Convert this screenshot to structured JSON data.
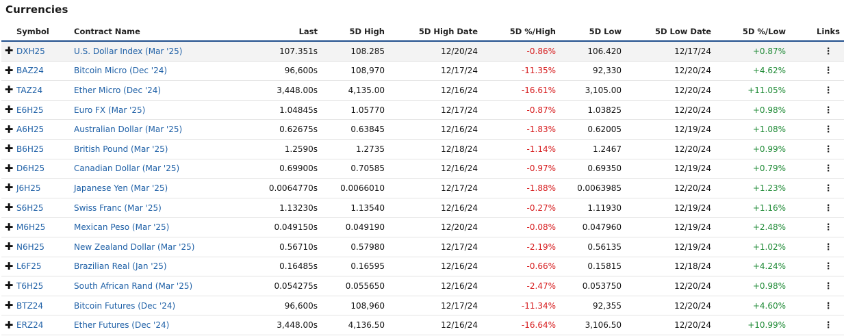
{
  "title": "Currencies",
  "columns": {
    "symbol": "Symbol",
    "name": "Contract Name",
    "last": "Last",
    "high": "5D High",
    "high_date": "5D High Date",
    "high_pct": "5D %/High",
    "low": "5D Low",
    "low_date": "5D Low Date",
    "low_pct": "5D %/Low",
    "links": "Links"
  },
  "icons": {
    "expand": "plus-icon",
    "more": "vertical-ellipsis-icon"
  },
  "colors": {
    "link": "#1d5fa6",
    "negative": "#d6191b",
    "positive": "#1e8a35",
    "header_rule": "#1f4e8c"
  },
  "rows": [
    {
      "symbol": "DXH25",
      "name": "U.S. Dollar Index (Mar '25)",
      "last": "107.351s",
      "high": "108.285",
      "high_date": "12/20/24",
      "high_pct": "-0.86%",
      "low": "106.420",
      "low_date": "12/17/24",
      "low_pct": "+0.87%"
    },
    {
      "symbol": "BAZ24",
      "name": "Bitcoin Micro (Dec '24)",
      "last": "96,600s",
      "high": "108,970",
      "high_date": "12/17/24",
      "high_pct": "-11.35%",
      "low": "92,330",
      "low_date": "12/20/24",
      "low_pct": "+4.62%"
    },
    {
      "symbol": "TAZ24",
      "name": "Ether Micro (Dec '24)",
      "last": "3,448.00s",
      "high": "4,135.00",
      "high_date": "12/16/24",
      "high_pct": "-16.61%",
      "low": "3,105.00",
      "low_date": "12/20/24",
      "low_pct": "+11.05%"
    },
    {
      "symbol": "E6H25",
      "name": "Euro FX (Mar '25)",
      "last": "1.04845s",
      "high": "1.05770",
      "high_date": "12/17/24",
      "high_pct": "-0.87%",
      "low": "1.03825",
      "low_date": "12/20/24",
      "low_pct": "+0.98%"
    },
    {
      "symbol": "A6H25",
      "name": "Australian Dollar (Mar '25)",
      "last": "0.62675s",
      "high": "0.63845",
      "high_date": "12/16/24",
      "high_pct": "-1.83%",
      "low": "0.62005",
      "low_date": "12/19/24",
      "low_pct": "+1.08%"
    },
    {
      "symbol": "B6H25",
      "name": "British Pound (Mar '25)",
      "last": "1.2590s",
      "high": "1.2735",
      "high_date": "12/18/24",
      "high_pct": "-1.14%",
      "low": "1.2467",
      "low_date": "12/20/24",
      "low_pct": "+0.99%"
    },
    {
      "symbol": "D6H25",
      "name": "Canadian Dollar (Mar '25)",
      "last": "0.69900s",
      "high": "0.70585",
      "high_date": "12/16/24",
      "high_pct": "-0.97%",
      "low": "0.69350",
      "low_date": "12/19/24",
      "low_pct": "+0.79%"
    },
    {
      "symbol": "J6H25",
      "name": "Japanese Yen (Mar '25)",
      "last": "0.0064770s",
      "high": "0.0066010",
      "high_date": "12/17/24",
      "high_pct": "-1.88%",
      "low": "0.0063985",
      "low_date": "12/20/24",
      "low_pct": "+1.23%"
    },
    {
      "symbol": "S6H25",
      "name": "Swiss Franc (Mar '25)",
      "last": "1.13230s",
      "high": "1.13540",
      "high_date": "12/16/24",
      "high_pct": "-0.27%",
      "low": "1.11930",
      "low_date": "12/19/24",
      "low_pct": "+1.16%"
    },
    {
      "symbol": "M6H25",
      "name": "Mexican Peso (Mar '25)",
      "last": "0.049150s",
      "high": "0.049190",
      "high_date": "12/20/24",
      "high_pct": "-0.08%",
      "low": "0.047960",
      "low_date": "12/19/24",
      "low_pct": "+2.48%"
    },
    {
      "symbol": "N6H25",
      "name": "New Zealand Dollar (Mar '25)",
      "last": "0.56710s",
      "high": "0.57980",
      "high_date": "12/17/24",
      "high_pct": "-2.19%",
      "low": "0.56135",
      "low_date": "12/19/24",
      "low_pct": "+1.02%"
    },
    {
      "symbol": "L6F25",
      "name": "Brazilian Real (Jan '25)",
      "last": "0.16485s",
      "high": "0.16595",
      "high_date": "12/16/24",
      "high_pct": "-0.66%",
      "low": "0.15815",
      "low_date": "12/18/24",
      "low_pct": "+4.24%"
    },
    {
      "symbol": "T6H25",
      "name": "South African Rand (Mar '25)",
      "last": "0.054275s",
      "high": "0.055650",
      "high_date": "12/16/24",
      "high_pct": "-2.47%",
      "low": "0.053750",
      "low_date": "12/20/24",
      "low_pct": "+0.98%"
    },
    {
      "symbol": "BTZ24",
      "name": "Bitcoin Futures (Dec '24)",
      "last": "96,600s",
      "high": "108,960",
      "high_date": "12/17/24",
      "high_pct": "-11.34%",
      "low": "92,355",
      "low_date": "12/20/24",
      "low_pct": "+4.60%"
    },
    {
      "symbol": "ERZ24",
      "name": "Ether Futures (Dec '24)",
      "last": "3,448.00s",
      "high": "4,136.50",
      "high_date": "12/16/24",
      "high_pct": "-16.64%",
      "low": "3,106.50",
      "low_date": "12/20/24",
      "low_pct": "+10.99%"
    }
  ]
}
